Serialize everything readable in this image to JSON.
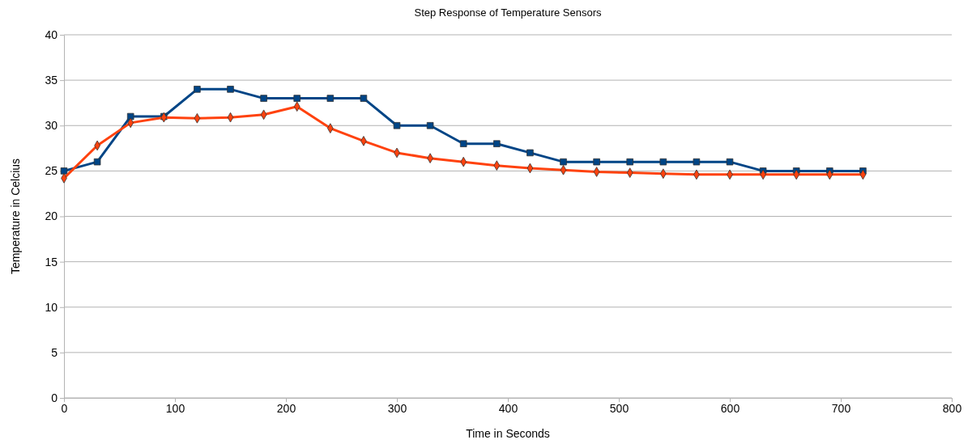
{
  "chart_data": {
    "type": "line",
    "title": "Step Response of Temperature Sensors",
    "xlabel": "Time in Seconds",
    "ylabel": "Temperature in Celcius",
    "x": [
      0,
      30,
      60,
      90,
      120,
      150,
      180,
      210,
      240,
      270,
      300,
      330,
      360,
      390,
      420,
      450,
      480,
      510,
      540,
      570,
      600,
      630,
      660,
      690,
      720
    ],
    "series": [
      {
        "color": "#004586",
        "marker": "square",
        "values": [
          25,
          26,
          31,
          31,
          34,
          34,
          33,
          33,
          33,
          33,
          30,
          30,
          28,
          28,
          27,
          26,
          26,
          26,
          26,
          26,
          26,
          25,
          25,
          25,
          25
        ]
      },
      {
        "color": "#ff420e",
        "marker": "diamond",
        "values": [
          24.2,
          27.8,
          30.3,
          30.9,
          30.8,
          30.9,
          31.2,
          32.1,
          29.7,
          28.3,
          27,
          26.4,
          26,
          25.6,
          25.3,
          25.1,
          24.9,
          24.8,
          24.7,
          24.6,
          24.6,
          24.6,
          24.6,
          24.6,
          24.6
        ]
      }
    ],
    "xlim": [
      0,
      800
    ],
    "xticks": [
      0,
      100,
      200,
      300,
      400,
      500,
      600,
      700,
      800
    ],
    "ylim": [
      0,
      40
    ],
    "yticks": [
      0,
      5,
      10,
      15,
      20,
      25,
      30,
      35,
      40
    ],
    "grid": "y",
    "line_style": "solid"
  }
}
